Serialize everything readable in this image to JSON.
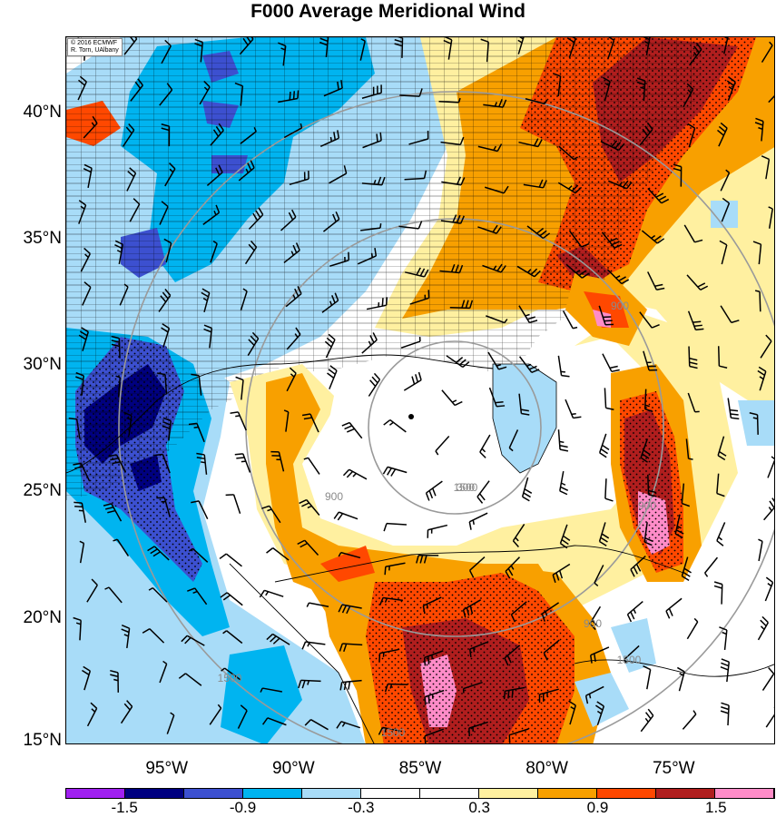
{
  "title": "F000 Average Meridional Wind",
  "credit": {
    "line1": "© 2016 ECMWF",
    "line2": "R. Torn, UAlbany"
  },
  "map": {
    "lat_range": [
      15,
      43
    ],
    "lon_range": [
      -99,
      -71
    ],
    "lat_labels": [
      "40°N",
      "35°N",
      "30°N",
      "25°N",
      "20°N",
      "15°N"
    ],
    "lat_values": [
      40,
      35,
      30,
      25,
      20,
      15
    ],
    "lon_labels": [
      "95°W",
      "90°W",
      "85°W",
      "80°W",
      "75°W"
    ],
    "lon_values": [
      -95,
      -90,
      -85,
      -80,
      -75
    ],
    "contour_labels": [
      "300",
      "900",
      "900",
      "900",
      "900",
      "1500",
      "1500",
      "1500",
      "1500"
    ],
    "storm_center": {
      "lat": 27.5,
      "lon": -86
    }
  },
  "colorbar": {
    "labels": [
      "-1.5",
      "-0.9",
      "-0.3",
      "0.3",
      "0.9",
      "1.5"
    ],
    "colors": [
      "#a020f0",
      "#000080",
      "#3c50d0",
      "#00b4f0",
      "#a8dcf8",
      "#ffffff",
      "#ffffff",
      "#fff0a0",
      "#f8a000",
      "#ff4800",
      "#b01e1e",
      "#ff8cc8"
    ]
  }
}
